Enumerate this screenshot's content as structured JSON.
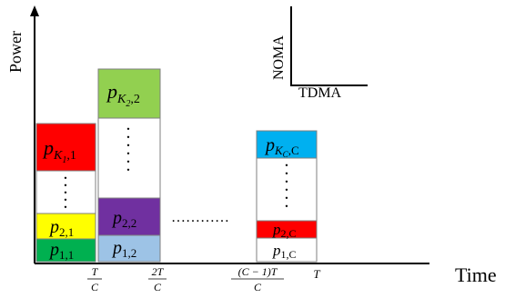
{
  "axes": {
    "y_label": "Power",
    "x_label": "Time"
  },
  "legend": {
    "vertical_label": "NOMA",
    "horizontal_label": "TDMA"
  },
  "ticks": [
    {
      "num": "T",
      "den": "C"
    },
    {
      "num": "2T",
      "den": "C"
    },
    {
      "num": "(C − 1)T",
      "den": "C"
    },
    {
      "num": "T",
      "den": ""
    }
  ],
  "blocks": {
    "b1_top": "p",
    "b1_top_sub": "K",
    "b1_top_sub2": "1",
    "b1_top_sub3": ",1",
    "b1_mid": "p",
    "b1_mid_sub": "2,1",
    "b1_bot": "p",
    "b1_bot_sub": "1,1",
    "b2_top": "p",
    "b2_top_sub": "K",
    "b2_top_sub2": "2",
    "b2_top_sub3": ",2",
    "b2_mid": "p",
    "b2_mid_sub": "2,2",
    "b2_bot": "p",
    "b2_bot_sub": "1,2",
    "bc_top": "p",
    "bc_top_sub": "K",
    "bc_top_sub2": "C",
    "bc_top_sub3": ",C",
    "bc_mid": "p",
    "bc_mid_sub": "2,C",
    "bc_bot": "p",
    "bc_bot_sub": "1,C"
  },
  "gap_dots": "…………",
  "colors": {
    "red": "#ff0000",
    "yellow": "#ffff00",
    "dark_green": "#00b050",
    "light_green": "#92d050",
    "purple": "#7030a0",
    "light_blue": "#9dc3e6",
    "sky_blue": "#00b0f0"
  }
}
